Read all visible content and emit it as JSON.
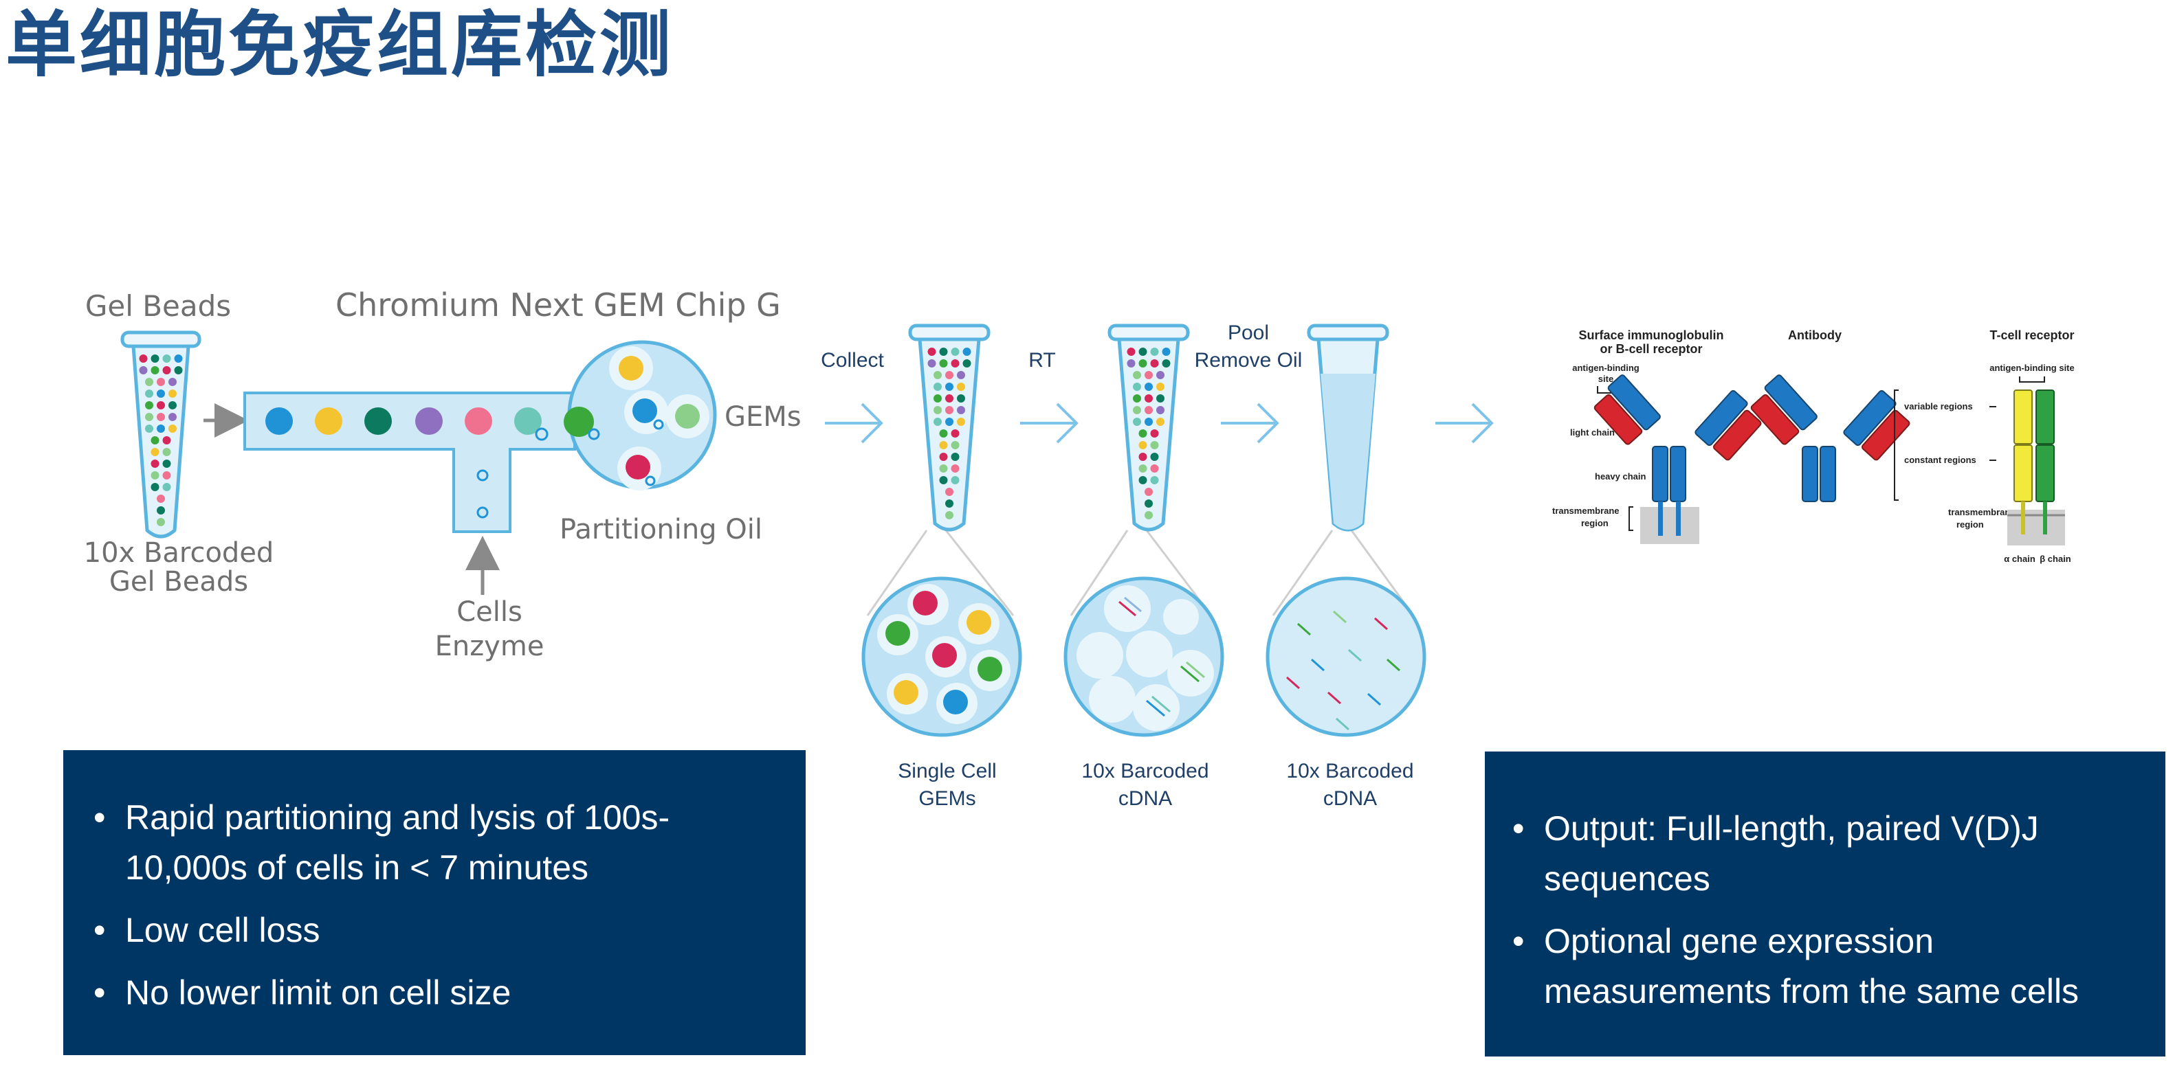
{
  "slide": {
    "title": "单细胞免疫组库检测"
  },
  "workflow": {
    "gel_beads_label": "Gel Beads",
    "chip_label": "Chromium Next GEM Chip G",
    "barcoded_beads_line1": "10x Barcoded",
    "barcoded_beads_line2": "Gel Beads",
    "cells_line1": "Cells",
    "cells_line2": "Enzyme",
    "gems_label": "GEMs",
    "oil_label": "Partitioning Oil",
    "collect_label": "Collect",
    "rt_label": "RT",
    "pool_line1": "Pool",
    "pool_line2": "Remove Oil",
    "single_cell_line1": "Single Cell",
    "single_cell_line2": "GEMs",
    "cdna1_line1": "10x Barcoded",
    "cdna1_line2": "cDNA",
    "cdna2_line1": "10x Barcoded",
    "cdna2_line2": "cDNA"
  },
  "receptors": {
    "bcr_title_line1": "Surface immunoglobulin",
    "bcr_title_line2": "or B-cell receptor",
    "antibody_title": "Antibody",
    "tcr_title": "T-cell receptor",
    "antigen_site_line1": "antigen-binding",
    "antigen_site_line2": "site",
    "light_chain": "light chain",
    "heavy_chain": "heavy chain",
    "transmembrane_line1": "transmembrane",
    "transmembrane_line2": "region",
    "tcr_antigen_site": "antigen-binding site",
    "variable_regions": "variable regions",
    "constant_regions": "constant regions",
    "tcr_transmembrane_line1": "transmembrane",
    "tcr_transmembrane_line2": "region",
    "alpha_chain": "α chain",
    "beta_chain": "β chain"
  },
  "left_panel": {
    "bullets": [
      {
        "line1": "Rapid partitioning and lysis of 100s-",
        "line2": "10,000s of cells in < 7 minutes"
      },
      {
        "line1": "Low cell loss"
      },
      {
        "line1": "No lower limit on cell size"
      }
    ]
  },
  "right_panel": {
    "bullets": [
      {
        "line1": "Output: Full-length, paired V(D)J",
        "line2": "sequences"
      },
      {
        "line1": "Optional gene expression",
        "line2": "measurements from the same cells"
      }
    ]
  },
  "colors": {
    "title": "#1e4f86",
    "panel_bg": "#003664",
    "channel_fill": "#cfe9f7",
    "channel_stroke": "#5ab4e0",
    "heavy_chain_blue": "#1f78c4",
    "light_chain_red": "#d7262e",
    "tcr_yellow": "#f2ea3a",
    "tcr_green": "#2fa044"
  }
}
